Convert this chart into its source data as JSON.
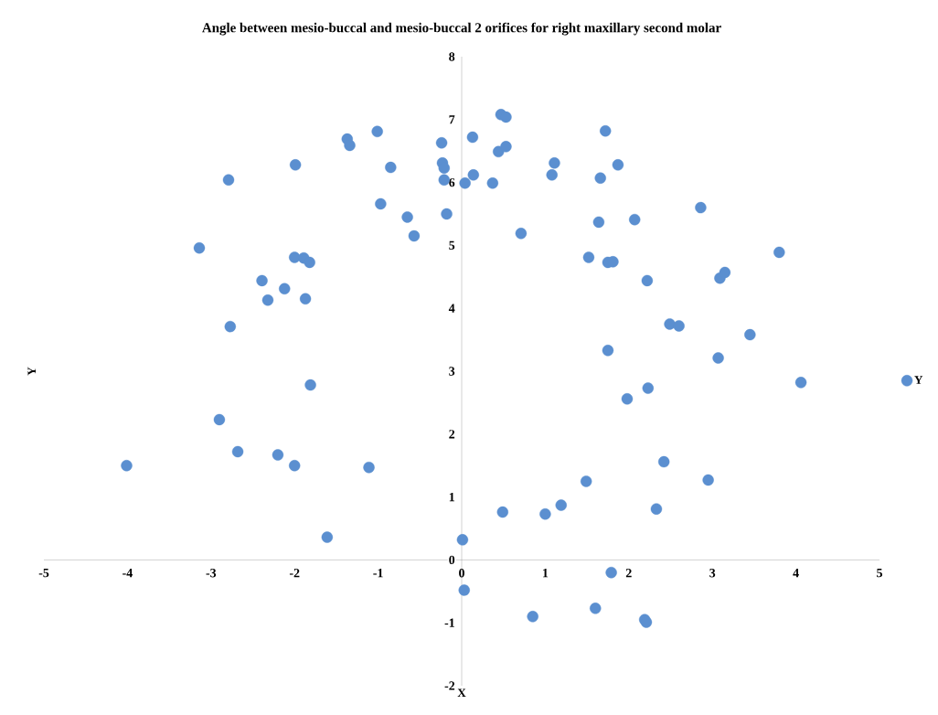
{
  "chart_data": {
    "type": "scatter",
    "title": "Angle between mesio-buccal and mesio-buccal 2 orifices for right maxillary second molar",
    "xlabel": "X",
    "ylabel": "Y",
    "xlim": [
      -5,
      5
    ],
    "ylim": [
      -2,
      8
    ],
    "xticks": [
      -5,
      -4,
      -3,
      -2,
      -1,
      0,
      1,
      2,
      3,
      4,
      5
    ],
    "yticks": [
      -2,
      -1,
      0,
      1,
      2,
      3,
      4,
      5,
      6,
      7,
      8
    ],
    "grid": false,
    "legend": "right",
    "marker": "circle",
    "series": [
      {
        "name": "Y",
        "color": "#5b8fd0",
        "x": [
          -4.01,
          -3.14,
          -2.79,
          -2.77,
          -2.9,
          -2.68,
          -2.39,
          -2.32,
          -2.12,
          -2.2,
          -2.0,
          -1.99,
          -2.0,
          -1.89,
          -1.82,
          -1.87,
          -1.81,
          -1.61,
          -1.37,
          -1.34,
          -1.11,
          -1.01,
          -0.97,
          -0.85,
          -0.65,
          -0.57,
          -0.24,
          -0.23,
          -0.21,
          -0.21,
          -0.18,
          0.01,
          0.03,
          0.04,
          0.13,
          0.14,
          0.37,
          0.44,
          0.47,
          0.53,
          0.53,
          0.49,
          0.71,
          0.85,
          1.0,
          1.19,
          1.08,
          1.11,
          1.49,
          1.52,
          1.6,
          1.64,
          1.66,
          1.72,
          1.75,
          1.81,
          1.75,
          1.79,
          1.87,
          1.98,
          2.07,
          2.19,
          2.21,
          2.22,
          2.23,
          2.33,
          2.42,
          2.49,
          2.6,
          2.86,
          2.95,
          3.07,
          3.09,
          3.15,
          3.45,
          3.8,
          4.06
        ],
        "values": [
          1.5,
          4.96,
          6.04,
          3.71,
          2.23,
          1.72,
          4.44,
          4.13,
          4.31,
          1.67,
          1.5,
          6.28,
          4.81,
          4.8,
          4.73,
          4.15,
          2.78,
          0.36,
          6.69,
          6.59,
          1.47,
          6.81,
          5.66,
          6.24,
          5.45,
          5.15,
          6.63,
          6.31,
          6.23,
          6.04,
          5.5,
          0.32,
          -0.48,
          5.99,
          6.72,
          6.12,
          5.99,
          6.49,
          7.08,
          7.04,
          6.57,
          0.76,
          5.19,
          -0.9,
          0.73,
          0.87,
          6.12,
          6.31,
          1.25,
          4.81,
          -0.77,
          5.37,
          6.07,
          6.82,
          4.73,
          4.74,
          3.33,
          -0.2,
          6.28,
          2.56,
          5.41,
          -0.95,
          -0.99,
          4.44,
          2.73,
          0.81,
          1.56,
          3.75,
          3.72,
          5.6,
          1.27,
          3.21,
          4.48,
          4.57,
          3.58,
          4.89,
          2.82
        ]
      }
    ]
  }
}
